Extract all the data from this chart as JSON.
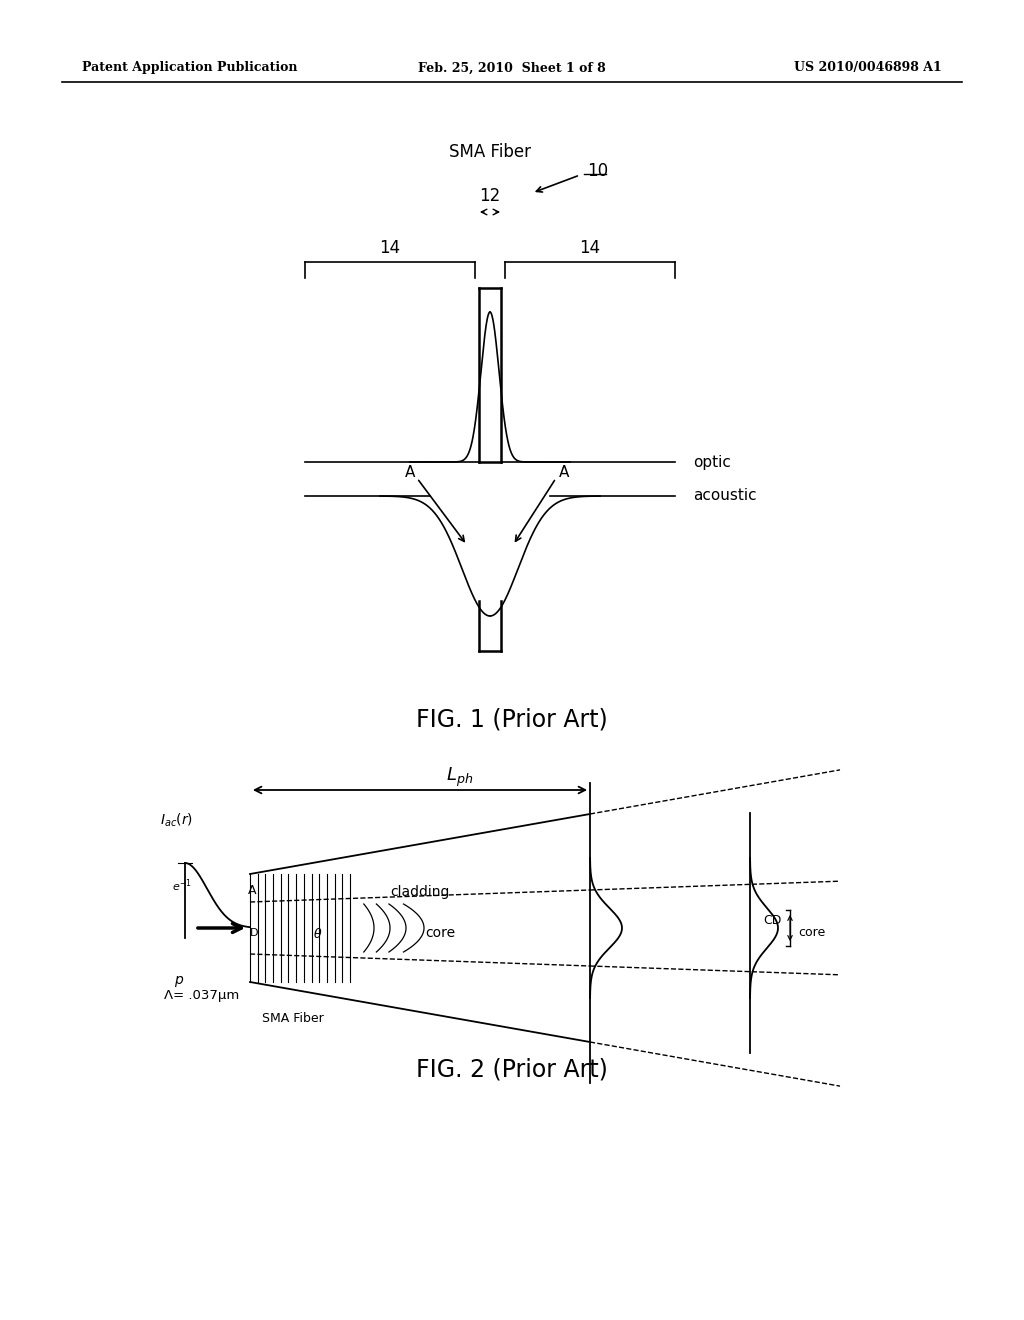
{
  "background_color": "#ffffff",
  "header_left": "Patent Application Publication",
  "header_center": "Feb. 25, 2010  Sheet 1 of 8",
  "header_right": "US 2010/0046898 A1",
  "fig1_caption": "FIG. 1 (Prior Art)",
  "fig2_caption": "FIG. 2 (Prior Art)",
  "label_sma_fiber_top": "SMA Fiber",
  "label_10": "10",
  "label_12": "12",
  "label_14_left": "14",
  "label_14_right": "14",
  "label_optic": "optic",
  "label_acoustic": "acoustic",
  "label_A_left": "A",
  "label_A_right": "A",
  "label_cladding": "cladding",
  "label_core": "core",
  "label_core_right": "core",
  "label_CD": "CD",
  "label_A_fig2": "A",
  "label_D": "D",
  "label_p": "p",
  "label_lambda": "Λ= .037μm",
  "label_sma_fiber_bottom": "SMA Fiber",
  "label_einv": "e⁻¹",
  "label_theta": "θ"
}
